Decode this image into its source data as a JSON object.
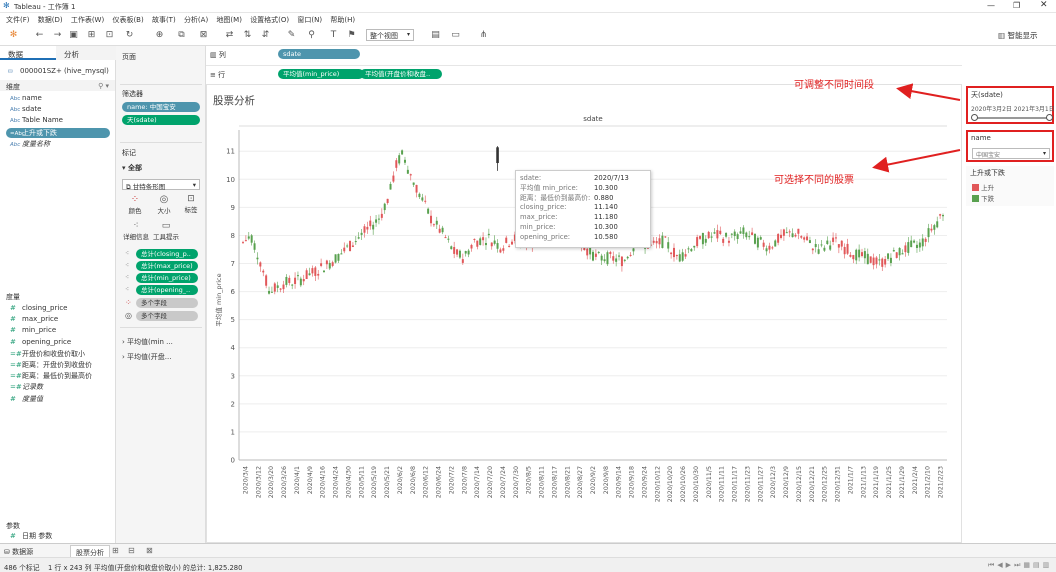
{
  "app": {
    "title": "Tableau - 工作簿 1"
  },
  "menu": [
    "文件(F)",
    "数据(D)",
    "工作表(W)",
    "仪表板(B)",
    "故事(T)",
    "分析(A)",
    "地图(M)",
    "设置格式(O)",
    "窗口(N)",
    "帮助(H)"
  ],
  "toolbar": {
    "view_mode": "整个视图",
    "show_me": "智能显示"
  },
  "left": {
    "tab_data": "数据",
    "tab_analysis": "分析",
    "datasource": "000001SZ+ (hive_mysql)",
    "dimensions_header": "维度",
    "dimensions": [
      {
        "type": "Abc",
        "name": "name"
      },
      {
        "type": "Abc",
        "name": "sdate"
      },
      {
        "type": "Abc",
        "name": "Table Name"
      },
      {
        "type": "=Abc",
        "name": "上升或下跌"
      },
      {
        "type": "Abc",
        "name": "度量名称"
      }
    ],
    "measures_header": "度量",
    "measures": [
      {
        "type": "#",
        "name": "closing_price"
      },
      {
        "type": "#",
        "name": "max_price"
      },
      {
        "type": "#",
        "name": "min_price"
      },
      {
        "type": "#",
        "name": "opening_price"
      },
      {
        "type": "=#",
        "name": "开盘价和收盘价取小"
      },
      {
        "type": "=#",
        "name": "距离：开盘价到收盘价"
      },
      {
        "type": "=#",
        "name": "距离：最低价到最高价"
      },
      {
        "type": "=#",
        "name": "记录数"
      },
      {
        "type": "#",
        "name": "度量值"
      }
    ],
    "params_header": "参数",
    "params": [
      {
        "type": "#",
        "name": "日期 参数"
      }
    ]
  },
  "mid": {
    "pages": "页面",
    "filters": "筛选器",
    "filter_pills": [
      "name: 中国宝安",
      "天(sdate)"
    ],
    "marks": "标记",
    "marks_all": "全部",
    "mark_type": "甘特条形图",
    "btn_color": "颜色",
    "btn_size": "大小",
    "btn_label": "标签",
    "btn_detail": "详细信息",
    "btn_tooltip": "工具提示",
    "mark_pills": [
      "总计(closing_p..",
      "总计(max_price)",
      "总计(min_price)",
      "总计(opening_.."
    ],
    "multi1": "多个字段",
    "multi2": "多个字段",
    "card1": "平均值(min ...",
    "card2": "平均值(开盘..."
  },
  "shelves": {
    "cols_label": "列",
    "col_pill": "sdate",
    "rows_label": "行",
    "row_pills": [
      "平均值(min_price)",
      "平均值(开盘价和收盘.."
    ]
  },
  "view": {
    "title": "股票分析",
    "col_header": "sdate",
    "y_axis_label": "平均值 min_price"
  },
  "chart_data": {
    "type": "candlestick",
    "y_ticks": [
      "0",
      "1",
      "2",
      "3",
      "4",
      "5",
      "6",
      "7",
      "8",
      "9",
      "10",
      "11"
    ],
    "ylim": [
      0,
      11.4
    ],
    "x_ticks": [
      "2020/3/4",
      "2020/3/12",
      "2020/3/20",
      "2020/3/26",
      "2020/4/1",
      "2020/4/9",
      "2020/4/16",
      "2020/4/24",
      "2020/4/30",
      "2020/5/11",
      "2020/5/19",
      "2020/5/21",
      "2020/6/2",
      "2020/6/8",
      "2020/6/12",
      "2020/6/24",
      "2020/7/2",
      "2020/7/8",
      "2020/7/14",
      "2020/7/20",
      "2020/7/24",
      "2020/7/30",
      "2020/8/5",
      "2020/8/11",
      "2020/8/17",
      "2020/8/21",
      "2020/8/27",
      "2020/9/2",
      "2020/9/8",
      "2020/9/14",
      "2020/9/18",
      "2020/9/24",
      "2020/10/12",
      "2020/10/20",
      "2020/10/26",
      "2020/10/30",
      "2020/11/5",
      "2020/11/11",
      "2020/11/17",
      "2020/11/23",
      "2020/11/27",
      "2020/12/3",
      "2020/12/9",
      "2020/12/15",
      "2020/12/21",
      "2020/12/25",
      "2020/12/31",
      "2021/1/7",
      "2021/1/13",
      "2021/1/19",
      "2021/1/25",
      "2021/1/29",
      "2021/2/4",
      "2021/2/10",
      "2021/2/23"
    ],
    "legend_title": "上升或下跌",
    "legend": [
      {
        "name": "上升",
        "color": "#e15759"
      },
      {
        "name": "下跌",
        "color": "#59a14f"
      }
    ],
    "highlight": {
      "sdate": "2020/7/13",
      "avg_min_price_label": "平均值 min_price:",
      "avg_min_price": "10.300",
      "range_label": "距离：最低价到最高价:",
      "range": "0.880",
      "closing_label": "closing_price:",
      "closing_price": "11.140",
      "max_label": "max_price:",
      "max_price": "11.180",
      "min_label": "min_price:",
      "min_price": "10.300",
      "opening_label": "opening_price:",
      "opening_price": "10.580"
    }
  },
  "right": {
    "date_filter_title": "天(sdate)",
    "date_range": "2020年3月2日  2021年3月1日",
    "name_filter_title": "name",
    "name_value": "中国宝安",
    "legend_title": "上升或下跌",
    "legend_up": "上升",
    "legend_down": "下跌"
  },
  "annotations": {
    "note1": "可调整不同时间段",
    "note2": "可选择不同的股票"
  },
  "bottom": {
    "tab_datasource": "数据源",
    "tab_sheet": "股票分析",
    "status1": "486 个标记",
    "status2": "1 行 x 243 列",
    "status3": "平均值(开盘价和收盘价取小) 的总计: 1,825.280"
  },
  "colors": {
    "up": "#e15759",
    "down": "#59a14f",
    "pill_green": "#00a36c",
    "pill_blue": "#4e95ad",
    "annotation": "#e02020"
  }
}
